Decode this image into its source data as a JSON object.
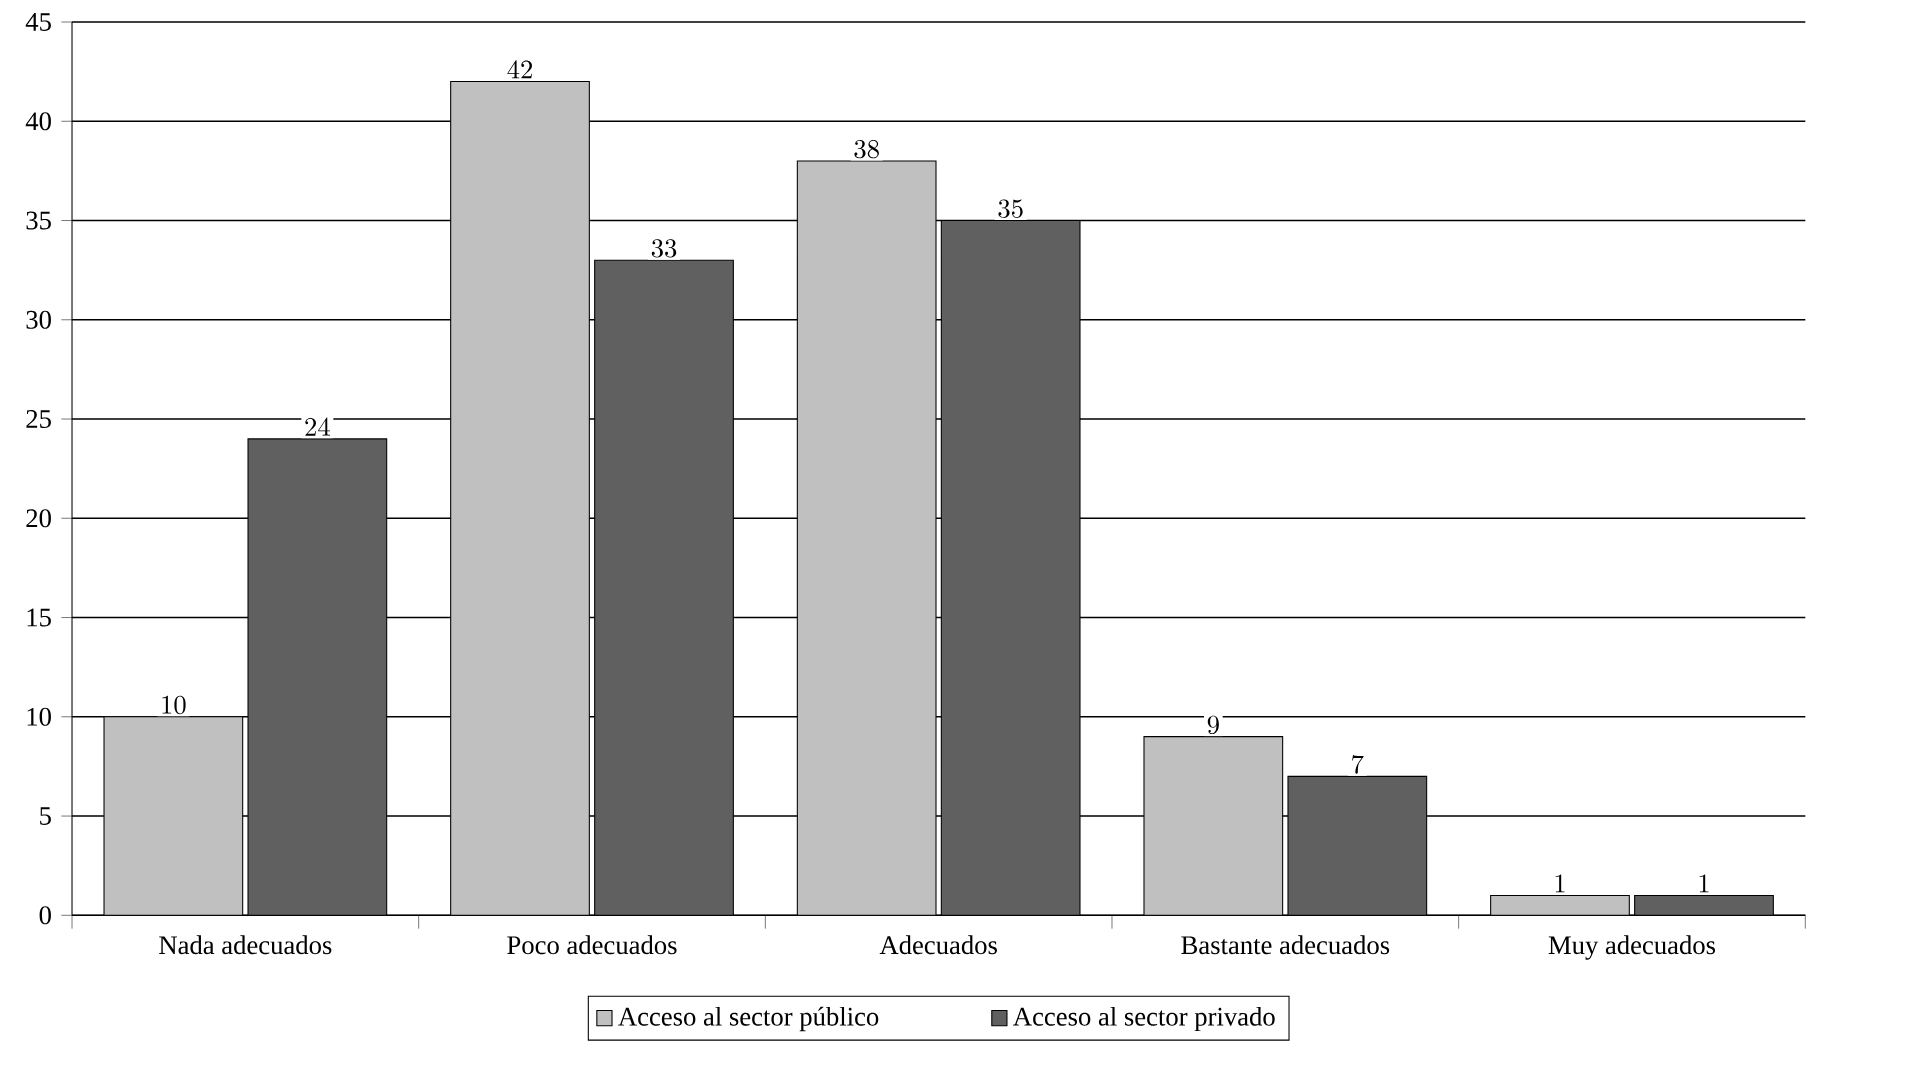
{
  "chart_data": {
    "type": "bar",
    "categories": [
      "Nada adecuados",
      "Poco adecuados",
      "Adecuados",
      "Bastante adecuados",
      "Muy adecuados"
    ],
    "series": [
      {
        "name": "Acceso al sector público",
        "color": "#c0c0c0",
        "values": [
          10,
          42,
          38,
          9,
          1
        ]
      },
      {
        "name": "Acceso al sector privado",
        "color": "#606060",
        "values": [
          24,
          33,
          35,
          7,
          1
        ]
      }
    ],
    "ylim": [
      0,
      45
    ],
    "yticks": [
      0,
      5,
      10,
      15,
      20,
      25,
      30,
      35,
      40,
      45
    ],
    "grid": "y",
    "legend": "bottom",
    "data_labels": true
  }
}
